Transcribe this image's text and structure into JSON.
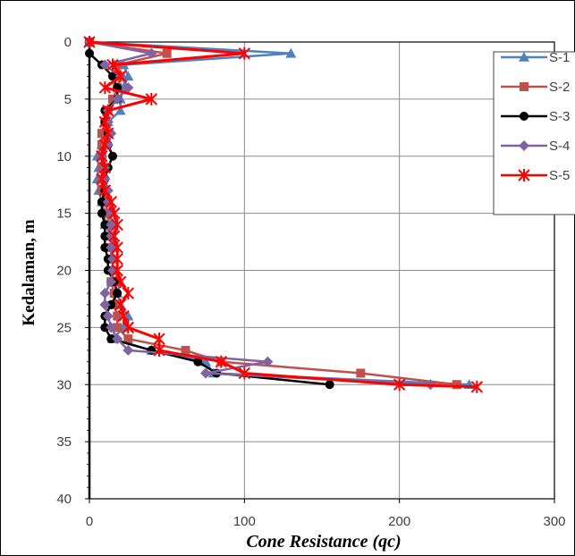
{
  "chart_data": {
    "type": "line",
    "xlabel": "Cone Resistance (qc)",
    "ylabel": "Kedalaman, m",
    "xlim": [
      0,
      300
    ],
    "ylim": [
      0,
      40
    ],
    "y_inverted": true,
    "x_ticks": [
      "0",
      "100",
      "200",
      "300"
    ],
    "y_ticks": [
      "0",
      "5",
      "10",
      "15",
      "20",
      "25",
      "30",
      "35",
      "40"
    ],
    "grid": "major vertical and horizontal",
    "legend_position": "right",
    "series": [
      {
        "name": "S-1",
        "color": "#4F81BD",
        "marker": "triangle",
        "points": [
          [
            0,
            0
          ],
          [
            130,
            1
          ],
          [
            22,
            2
          ],
          [
            25,
            3
          ],
          [
            22,
            4
          ],
          [
            20,
            5
          ],
          [
            20,
            6
          ],
          [
            12,
            7
          ],
          [
            10,
            8
          ],
          [
            8,
            9
          ],
          [
            5,
            10
          ],
          [
            6,
            11
          ],
          [
            5,
            12
          ],
          [
            6,
            13
          ],
          [
            8,
            14
          ],
          [
            10,
            15
          ],
          [
            10,
            16
          ],
          [
            14,
            17
          ],
          [
            16,
            18
          ],
          [
            14,
            19
          ],
          [
            16,
            20
          ],
          [
            20,
            21
          ],
          [
            18,
            22
          ],
          [
            20,
            23
          ],
          [
            25,
            24
          ],
          [
            22,
            25
          ],
          [
            15,
            26
          ],
          [
            40,
            27
          ],
          [
            75,
            28
          ],
          [
            80,
            29
          ],
          [
            245,
            30
          ]
        ]
      },
      {
        "name": "S-2",
        "color": "#C0504D",
        "marker": "square",
        "points": [
          [
            0,
            0
          ],
          [
            50,
            1
          ],
          [
            18,
            2
          ],
          [
            20,
            3
          ],
          [
            18,
            4
          ],
          [
            15,
            5
          ],
          [
            12,
            6
          ],
          [
            10,
            7
          ],
          [
            8,
            8
          ],
          [
            8,
            9
          ],
          [
            8,
            10
          ],
          [
            8,
            11
          ],
          [
            8,
            12
          ],
          [
            8,
            13
          ],
          [
            10,
            14
          ],
          [
            12,
            15
          ],
          [
            12,
            16
          ],
          [
            14,
            17
          ],
          [
            14,
            18
          ],
          [
            14,
            19
          ],
          [
            16,
            20
          ],
          [
            14,
            21
          ],
          [
            16,
            22
          ],
          [
            16,
            23
          ],
          [
            18,
            24
          ],
          [
            18,
            25
          ],
          [
            25,
            26
          ],
          [
            62,
            27
          ],
          [
            85,
            28
          ],
          [
            175,
            29
          ],
          [
            237,
            30
          ]
        ]
      },
      {
        "name": "S-3",
        "color": "#000000",
        "marker": "circle",
        "points": [
          [
            0,
            0
          ],
          [
            0,
            1
          ],
          [
            8,
            2
          ],
          [
            15,
            3
          ],
          [
            18,
            4
          ],
          [
            18,
            5
          ],
          [
            10,
            6
          ],
          [
            10,
            7
          ],
          [
            12,
            8
          ],
          [
            12,
            9
          ],
          [
            15,
            10
          ],
          [
            12,
            11
          ],
          [
            10,
            12
          ],
          [
            10,
            13
          ],
          [
            8,
            14
          ],
          [
            8,
            15
          ],
          [
            10,
            16
          ],
          [
            10,
            17
          ],
          [
            10,
            18
          ],
          [
            12,
            19
          ],
          [
            12,
            20
          ],
          [
            16,
            21
          ],
          [
            18,
            22
          ],
          [
            14,
            23
          ],
          [
            10,
            24
          ],
          [
            10,
            25
          ],
          [
            14,
            26
          ],
          [
            40,
            27
          ],
          [
            70,
            28
          ],
          [
            82,
            29
          ],
          [
            155,
            30
          ]
        ]
      },
      {
        "name": "S-4",
        "color": "#8064A2",
        "marker": "diamond",
        "points": [
          [
            0,
            0
          ],
          [
            40,
            1
          ],
          [
            10,
            2
          ],
          [
            20,
            3
          ],
          [
            25,
            4
          ],
          [
            18,
            5
          ],
          [
            12,
            6
          ],
          [
            12,
            7
          ],
          [
            14,
            8
          ],
          [
            12,
            9
          ],
          [
            8,
            10
          ],
          [
            10,
            11
          ],
          [
            10,
            12
          ],
          [
            12,
            13
          ],
          [
            12,
            14
          ],
          [
            14,
            15
          ],
          [
            14,
            16
          ],
          [
            14,
            17
          ],
          [
            14,
            18
          ],
          [
            15,
            19
          ],
          [
            15,
            20
          ],
          [
            14,
            21
          ],
          [
            10,
            22
          ],
          [
            10,
            23
          ],
          [
            12,
            24
          ],
          [
            14,
            25
          ],
          [
            18,
            26
          ],
          [
            25,
            27
          ],
          [
            115,
            28
          ],
          [
            75,
            29
          ],
          [
            220,
            30
          ]
        ]
      },
      {
        "name": "S-5",
        "color": "#FF0000",
        "marker": "star",
        "points": [
          [
            0,
            0
          ],
          [
            100,
            1
          ],
          [
            15,
            2
          ],
          [
            20,
            3
          ],
          [
            10,
            4
          ],
          [
            40,
            5
          ],
          [
            12,
            6
          ],
          [
            10,
            7
          ],
          [
            12,
            8
          ],
          [
            10,
            9
          ],
          [
            8,
            10
          ],
          [
            10,
            11
          ],
          [
            8,
            12
          ],
          [
            10,
            13
          ],
          [
            14,
            14
          ],
          [
            16,
            15
          ],
          [
            18,
            16
          ],
          [
            16,
            17
          ],
          [
            18,
            18
          ],
          [
            18,
            19
          ],
          [
            18,
            20
          ],
          [
            20,
            21
          ],
          [
            25,
            22
          ],
          [
            20,
            23
          ],
          [
            22,
            24
          ],
          [
            25,
            25
          ],
          [
            45,
            26
          ],
          [
            45,
            27
          ],
          [
            85,
            28
          ],
          [
            100,
            29
          ],
          [
            200,
            30
          ],
          [
            250,
            30.2
          ]
        ]
      }
    ]
  }
}
